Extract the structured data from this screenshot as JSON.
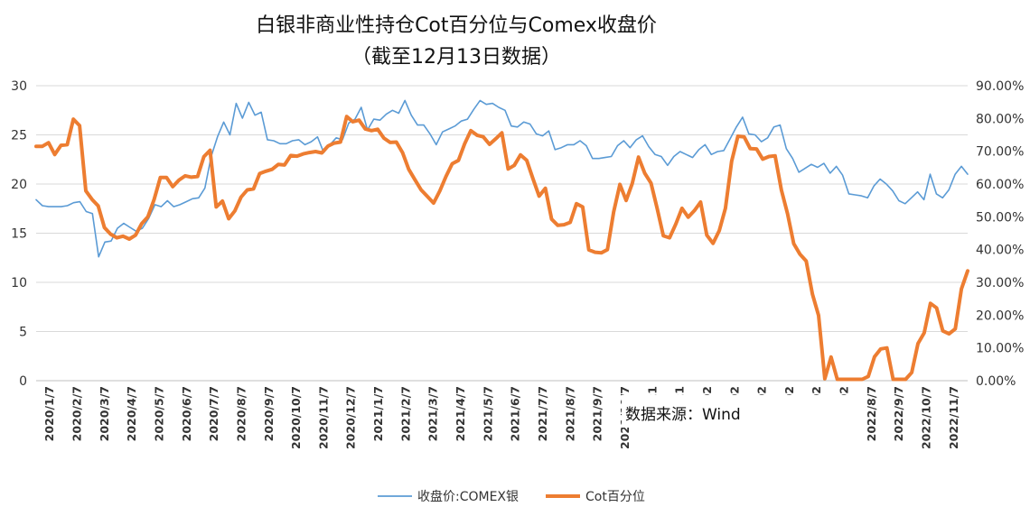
{
  "chart_data": {
    "type": "line",
    "title": "白银非商业性持仓Cot百分位与Comex收盘价",
    "subtitle": "（截至12月13日数据）",
    "source_note": "数据来源：Wind",
    "y_left": {
      "range": [
        0,
        30
      ],
      "ticks": [
        "0",
        "5",
        "10",
        "15",
        "20",
        "25",
        "30"
      ]
    },
    "y_right": {
      "range": [
        0,
        90
      ],
      "ticks": [
        "0.00%",
        "10.00%",
        "20.00%",
        "30.00%",
        "40.00%",
        "50.00%",
        "60.00%",
        "70.00%",
        "80.00%",
        "90.00%"
      ]
    },
    "x_tick_labels": [
      "2020/1/7",
      "2020/2/7",
      "2020/3/7",
      "2020/4/7",
      "2020/5/7",
      "2020/6/7",
      "2020/7/7",
      "2020/8/7",
      "2020/9/7",
      "2020/10/7",
      "2020/11/7",
      "2020/12/7",
      "2021/1/7",
      "2021/2/7",
      "2021/3/7",
      "2021/4/7",
      "2021/5/7",
      "2021/6/7",
      "2021/7/7",
      "2021/8/7",
      "2021/9/7",
      "2021/10/7",
      "2021",
      "2021",
      "202",
      "202",
      "202",
      "202",
      "202",
      "202",
      "2022/8/7",
      "2022/9/7",
      "2022/10/7",
      "2022/11/7"
    ],
    "legend": {
      "placement": "bottom"
    },
    "series": [
      {
        "name": "收盘价:COMEX银",
        "axis": "left",
        "color": "#5B9BD5",
        "values": [
          18.4,
          17.8,
          17.7,
          17.7,
          17.7,
          17.8,
          18.1,
          18.2,
          17.2,
          17.0,
          12.6,
          14.1,
          14.2,
          15.5,
          16.0,
          15.6,
          15.2,
          15.5,
          16.5,
          17.9,
          17.7,
          18.3,
          17.7,
          17.9,
          18.2,
          18.5,
          18.6,
          19.6,
          22.8,
          24.8,
          26.3,
          25.0,
          28.2,
          26.7,
          28.3,
          27.0,
          27.3,
          24.5,
          24.4,
          24.1,
          24.1,
          24.4,
          24.5,
          24.0,
          24.3,
          24.8,
          23.2,
          24.0,
          24.7,
          24.5,
          26.2,
          26.6,
          27.8,
          25.5,
          26.6,
          26.5,
          27.1,
          27.5,
          27.2,
          28.5,
          27.0,
          26.0,
          26.0,
          25.1,
          24.0,
          25.3,
          25.6,
          25.9,
          26.4,
          26.6,
          27.6,
          28.5,
          28.1,
          28.2,
          27.8,
          27.5,
          25.9,
          25.8,
          26.3,
          26.1,
          25.1,
          24.9,
          25.4,
          23.5,
          23.7,
          24.0,
          24.0,
          24.4,
          23.9,
          22.6,
          22.6,
          22.7,
          22.8,
          23.9,
          24.4,
          23.7,
          24.5,
          24.9,
          23.8,
          23.0,
          22.8,
          21.9,
          22.8,
          23.3,
          23.0,
          22.7,
          23.5,
          24.0,
          23.0,
          23.3,
          23.4,
          24.6,
          25.8,
          26.8,
          25.1,
          25.0,
          24.3,
          24.7,
          25.8,
          26.0,
          23.6,
          22.6,
          21.2,
          21.6,
          22.0,
          21.7,
          22.1,
          21.1,
          21.8,
          20.9,
          19.0,
          18.9,
          18.8,
          18.6,
          19.8,
          20.5,
          20.0,
          19.3,
          18.3,
          18.0,
          18.6,
          19.2,
          18.4,
          21.0,
          19.0,
          18.6,
          19.4,
          21.0,
          21.8,
          21.0
        ]
      },
      {
        "name": "Cot百分位",
        "axis": "right",
        "color": "#ED7D31",
        "values": [
          71.5,
          71.5,
          72.6,
          69.0,
          71.8,
          72.0,
          79.8,
          77.8,
          57.9,
          55.3,
          53.3,
          46.7,
          44.7,
          43.6,
          44.1,
          43.2,
          44.4,
          47.9,
          50.0,
          55.3,
          62.0,
          62.0,
          59.2,
          61.2,
          62.5,
          62.1,
          62.3,
          68.3,
          70.3,
          53.0,
          54.8,
          49.4,
          51.8,
          56.0,
          58.2,
          58.5,
          63.2,
          63.9,
          64.5,
          66.0,
          65.8,
          68.7,
          68.5,
          69.2,
          69.6,
          69.9,
          69.5,
          71.6,
          72.5,
          72.8,
          80.6,
          79.0,
          79.5,
          76.8,
          76.3,
          76.7,
          74.0,
          72.7,
          72.8,
          69.6,
          64.5,
          61.3,
          58.2,
          56.2,
          54.2,
          57.9,
          62.3,
          66.2,
          67.2,
          72.3,
          76.3,
          74.9,
          74.4,
          72.1,
          73.8,
          75.6,
          64.6,
          65.7,
          68.9,
          67.2,
          61.6,
          56.3,
          58.7,
          49.3,
          47.4,
          47.6,
          48.3,
          54.0,
          53.0,
          39.9,
          39.2,
          39.0,
          40.0,
          51.5,
          59.9,
          55.0,
          60.2,
          68.2,
          63.3,
          60.3,
          52.6,
          44.2,
          43.6,
          47.8,
          52.6,
          49.9,
          51.9,
          54.5,
          44.4,
          41.9,
          45.8,
          52.6,
          67.0,
          74.6,
          74.4,
          70.8,
          70.7,
          67.6,
          68.4,
          68.6,
          58.2,
          50.9,
          41.8,
          38.6,
          36.5,
          26.4,
          19.9,
          0.6,
          7.2,
          0.4,
          0.4,
          0.4,
          0.4,
          0.4,
          1.3,
          7.3,
          9.7,
          10.0,
          0.4,
          0.4,
          0.4,
          2.5,
          11.3,
          14.6,
          23.6,
          22.2,
          15.2,
          14.3,
          15.8,
          28.0,
          33.5
        ]
      }
    ]
  }
}
